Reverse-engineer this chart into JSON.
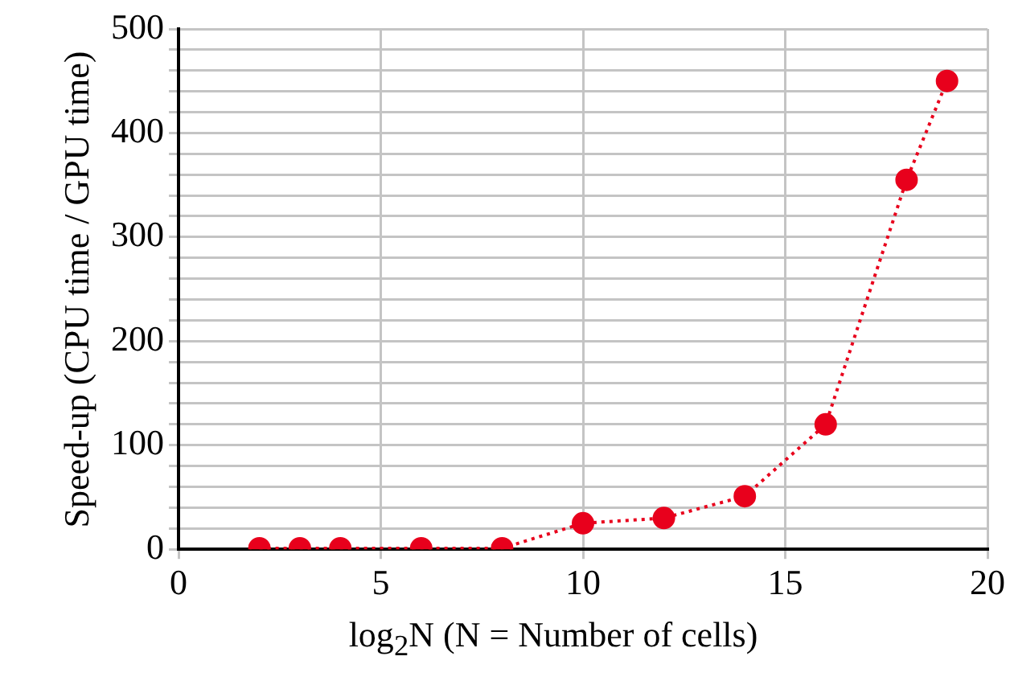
{
  "chart_data": {
    "type": "line",
    "xlabel": "log$_{2}$N (N = Number of cells)",
    "ylabel": "Speed-up (CPU time / GPU time)",
    "x": [
      2,
      3,
      4,
      6,
      8,
      10,
      12,
      14,
      16,
      18,
      19
    ],
    "series": [
      {
        "color": "#e8001c",
        "values": [
          1,
          1,
          1,
          1,
          1,
          25,
          30,
          51,
          120,
          355,
          450
        ]
      }
    ],
    "xlim": [
      0,
      20
    ],
    "xticks": [
      0,
      5,
      10,
      15,
      20
    ],
    "ylim": [
      0,
      500
    ],
    "yticks": [
      0,
      {
        "value": 20,
        "label": null
      },
      {
        "value": 40,
        "label": null
      },
      {
        "value": 60,
        "label": null
      },
      {
        "value": 80,
        "label": null
      },
      100,
      {
        "value": 120,
        "label": null
      },
      {
        "value": 140,
        "label": null
      },
      {
        "value": 160,
        "label": null
      },
      {
        "value": 180,
        "label": null
      },
      200,
      {
        "value": 220,
        "label": null
      },
      {
        "value": 240,
        "label": null
      },
      {
        "value": 260,
        "label": null
      },
      {
        "value": 280,
        "label": null
      },
      300,
      {
        "value": 320,
        "label": null
      },
      {
        "value": 340,
        "label": null
      },
      {
        "value": 360,
        "label": null
      },
      {
        "value": 380,
        "label": null
      },
      400,
      {
        "value": 420,
        "label": null
      },
      {
        "value": 440,
        "label": null
      },
      {
        "value": 460,
        "label": null
      },
      {
        "value": 480,
        "label": null
      },
      500
    ],
    "grid": true,
    "legend": false,
    "marker": "circle",
    "line_style": "dotted"
  }
}
